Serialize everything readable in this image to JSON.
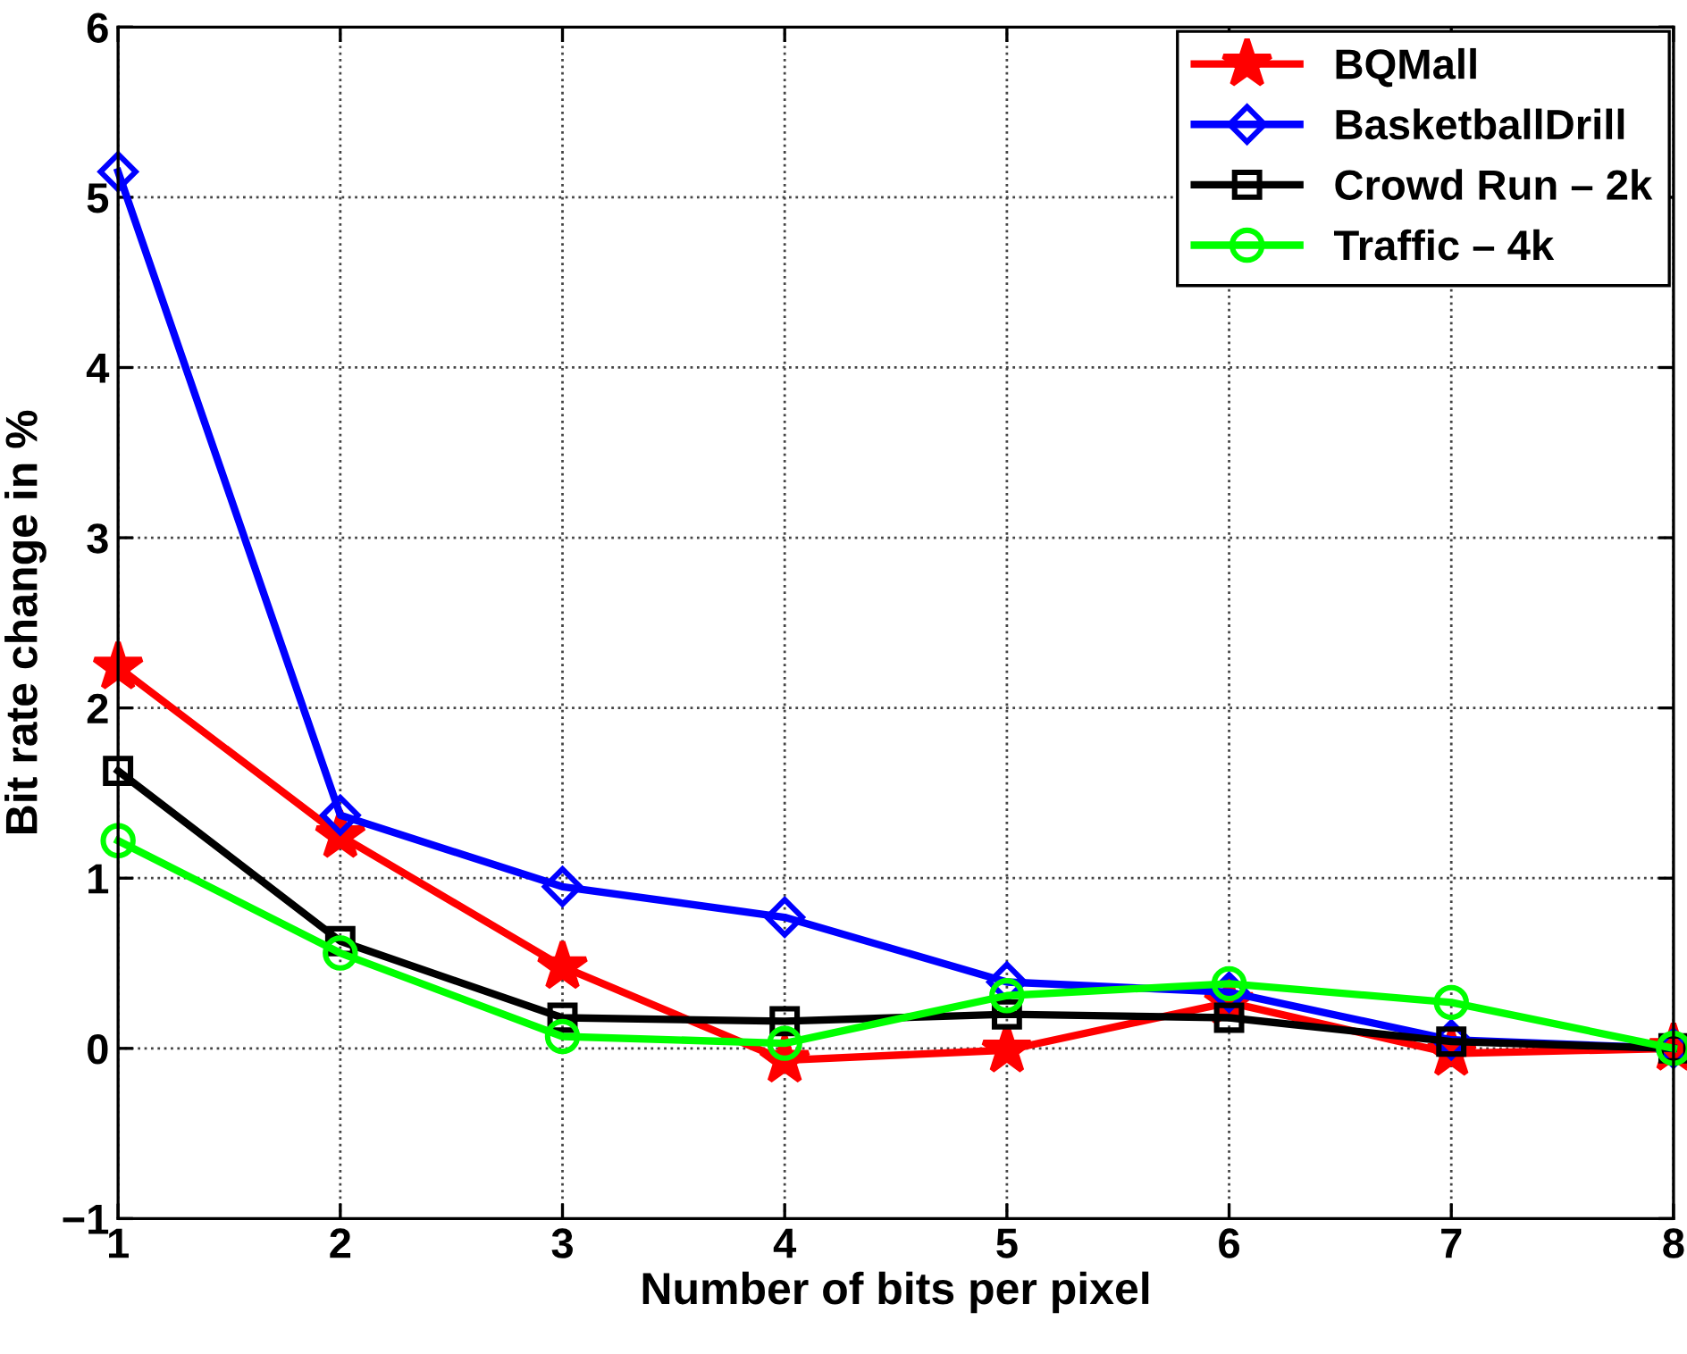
{
  "chart_data": {
    "type": "line",
    "xlabel": "Number of bits per pixel",
    "ylabel": "Bit rate change in %",
    "x": [
      1,
      2,
      3,
      4,
      5,
      6,
      7,
      8
    ],
    "series": [
      {
        "name": "BQMall",
        "color": "#ff0000",
        "marker": "star",
        "values": [
          2.24,
          1.25,
          0.48,
          -0.07,
          -0.01,
          0.27,
          -0.03,
          0.0
        ]
      },
      {
        "name": "BasketballDrill",
        "color": "#0000ff",
        "marker": "diamond",
        "values": [
          5.15,
          1.37,
          0.95,
          0.77,
          0.39,
          0.33,
          0.05,
          0.0
        ]
      },
      {
        "name": "Crowd Run – 2k",
        "color": "#000000",
        "marker": "square",
        "values": [
          1.63,
          0.63,
          0.18,
          0.16,
          0.2,
          0.18,
          0.04,
          0.0
        ]
      },
      {
        "name": "Traffic – 4k",
        "color": "#00ff00",
        "marker": "circle",
        "values": [
          1.22,
          0.56,
          0.07,
          0.03,
          0.31,
          0.38,
          0.27,
          0.0
        ]
      }
    ],
    "xlim": [
      1,
      8
    ],
    "xticks": [
      1,
      2,
      3,
      4,
      5,
      6,
      7,
      8
    ],
    "ylim": [
      -1,
      6
    ],
    "yticks": [
      -1,
      0,
      1,
      2,
      3,
      4,
      5,
      6
    ],
    "grid": true,
    "legend": "top right",
    "line_style": "solid"
  }
}
